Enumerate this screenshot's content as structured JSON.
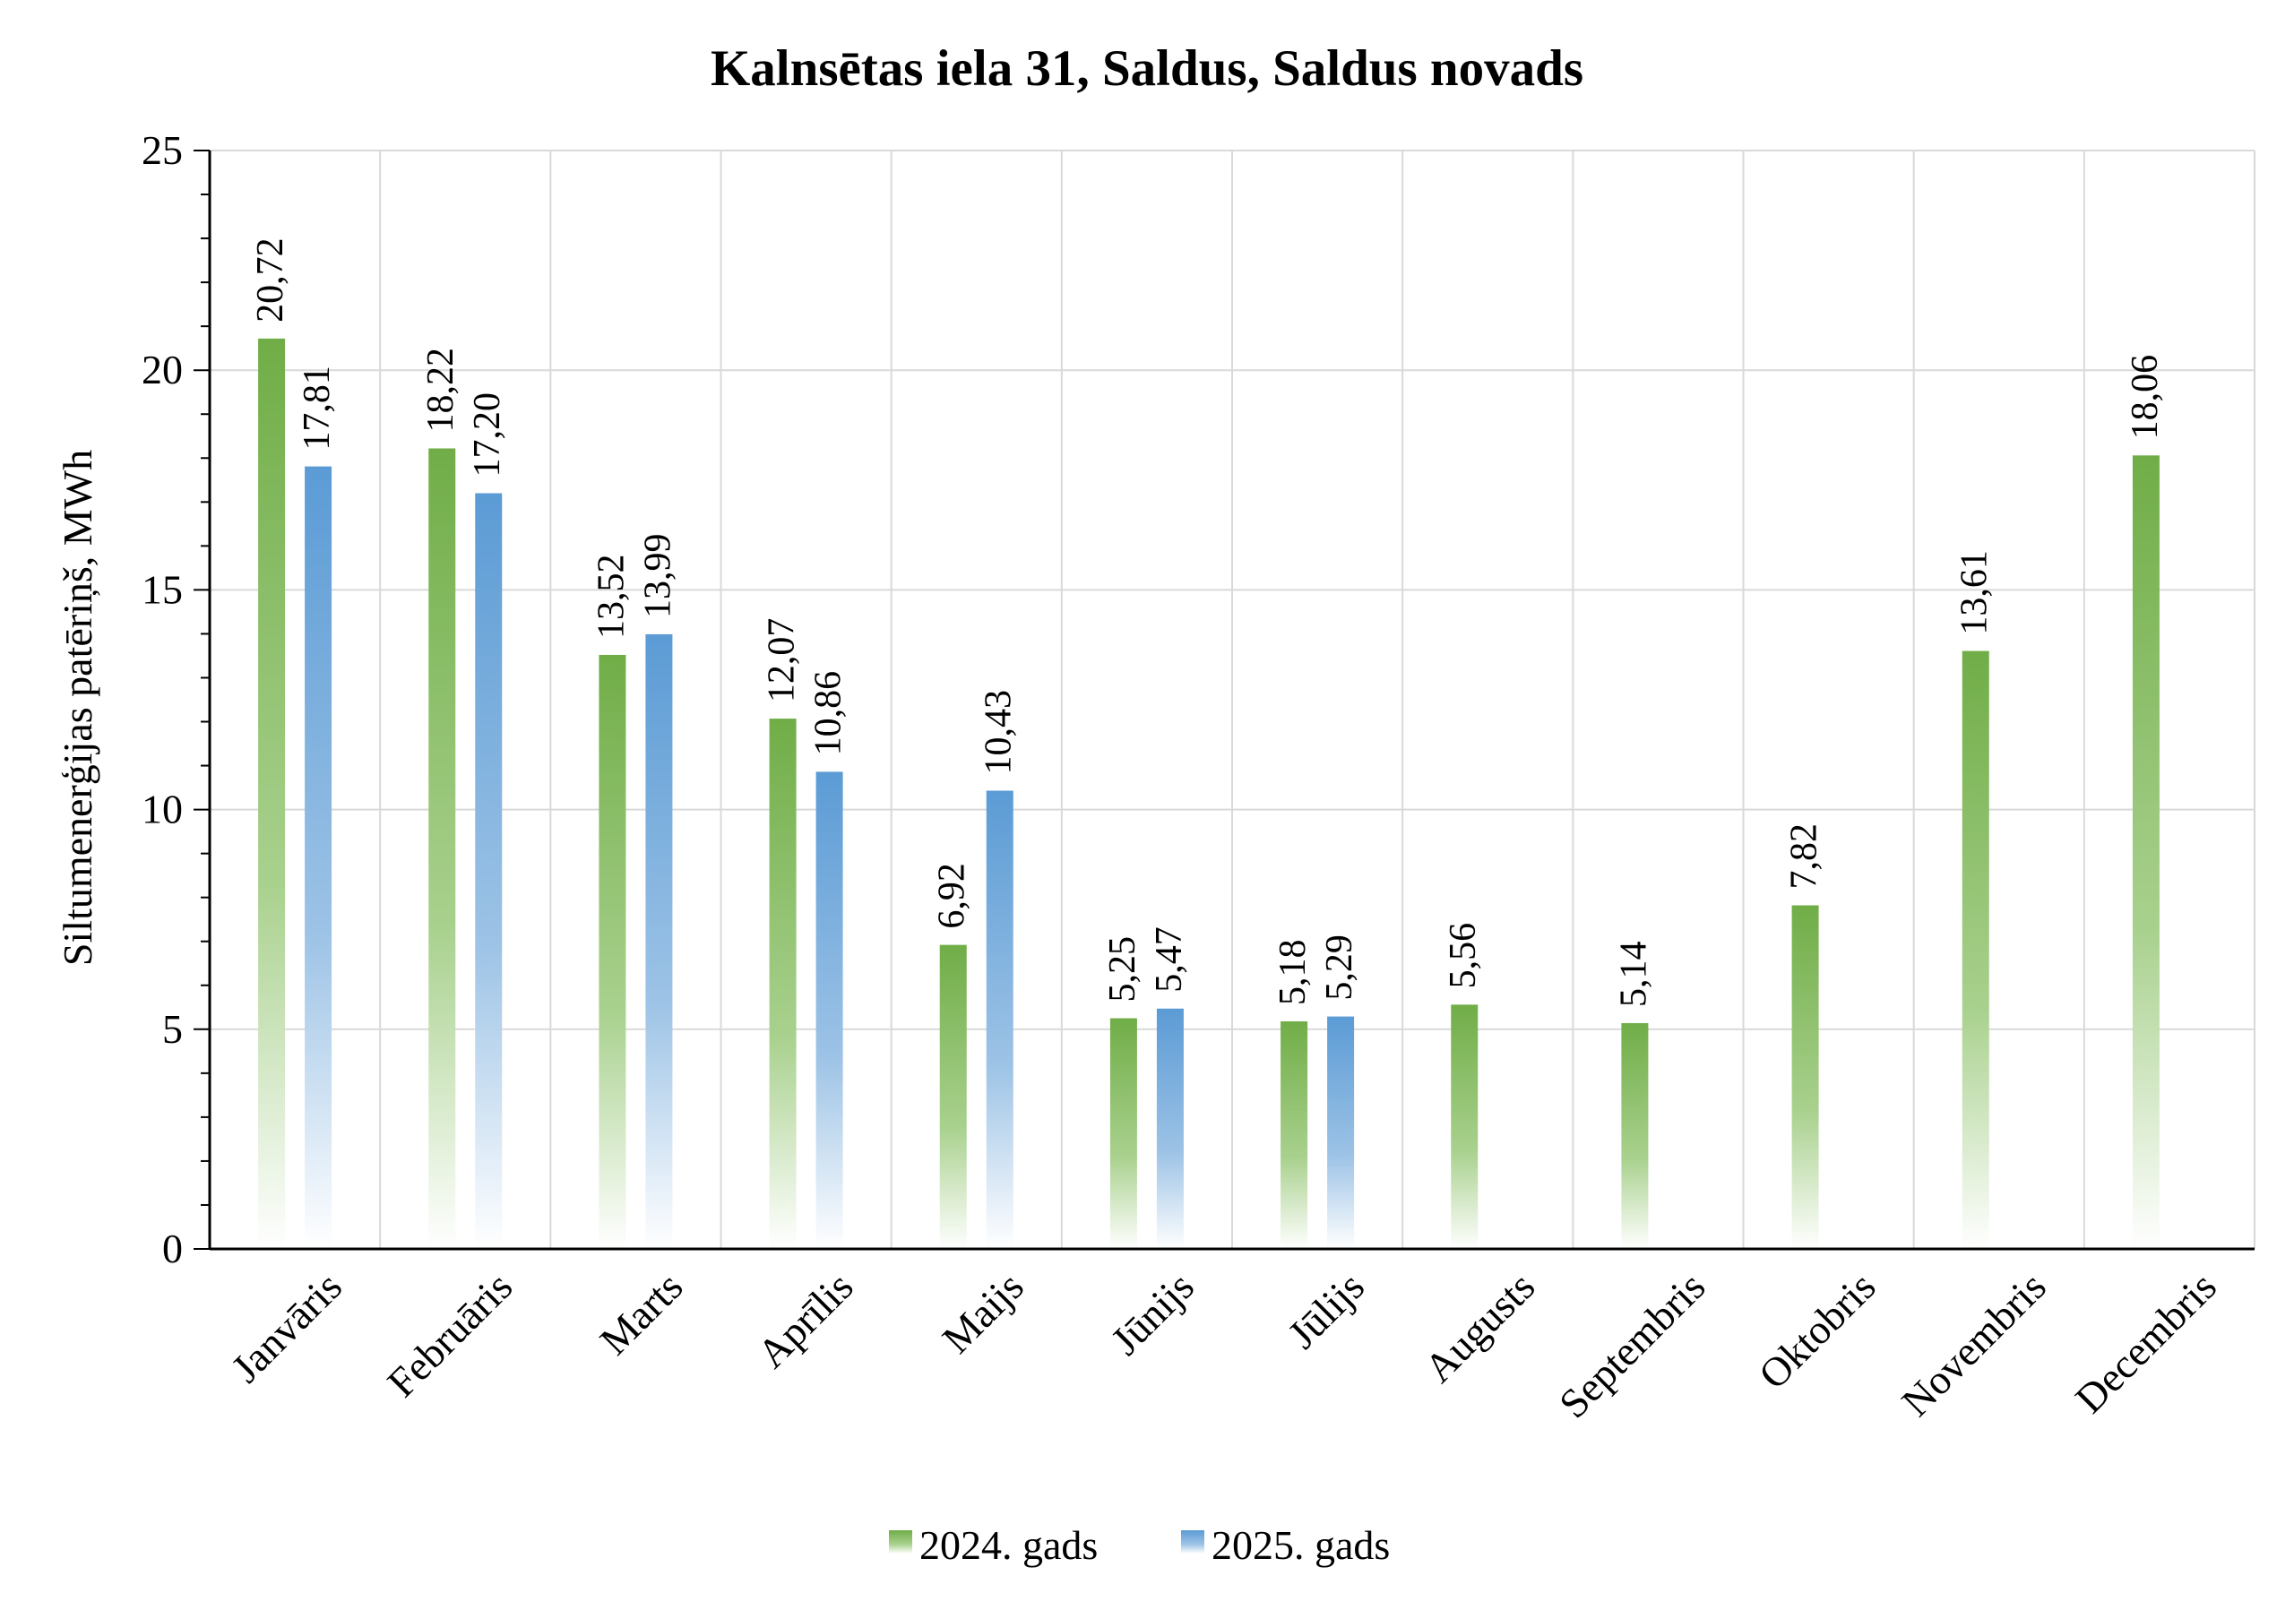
{
  "chart_data": {
    "type": "bar",
    "title": "Kalnsētas iela 31, Saldus, Saldus novads",
    "ylabel": "Siltumenerģijas patēriņš, MWh",
    "xlabel": "",
    "ylim": [
      0,
      25
    ],
    "yticks": [
      0,
      5,
      10,
      15,
      20,
      25
    ],
    "grid": true,
    "legend_position": "bottom",
    "categories": [
      "Janvāris",
      "Februāris",
      "Marts",
      "Aprīlis",
      "Maijs",
      "Jūnijs",
      "Jūlijs",
      "Augusts",
      "Septembris",
      "Oktobris",
      "Novembris",
      "Decembris"
    ],
    "series": [
      {
        "name": "2024. gads",
        "color": "#70ad47",
        "values": [
          20.72,
          18.22,
          13.52,
          12.07,
          6.92,
          5.25,
          5.18,
          5.56,
          5.14,
          7.82,
          13.61,
          18.06
        ],
        "labels": [
          "20,72",
          "18,22",
          "13,52",
          "12,07",
          "6,92",
          "5,25",
          "5,18",
          "5,56",
          "5,14",
          "7,82",
          "13,61",
          "18,06"
        ]
      },
      {
        "name": "2025. gads",
        "color": "#5b9bd5",
        "values": [
          17.81,
          17.2,
          13.99,
          10.86,
          10.43,
          5.47,
          5.29,
          null,
          null,
          null,
          null,
          null
        ],
        "labels": [
          "17,81",
          "17,20",
          "13,99",
          "10,86",
          "10,43",
          "5,47",
          "5,29",
          null,
          null,
          null,
          null,
          null
        ]
      }
    ]
  }
}
